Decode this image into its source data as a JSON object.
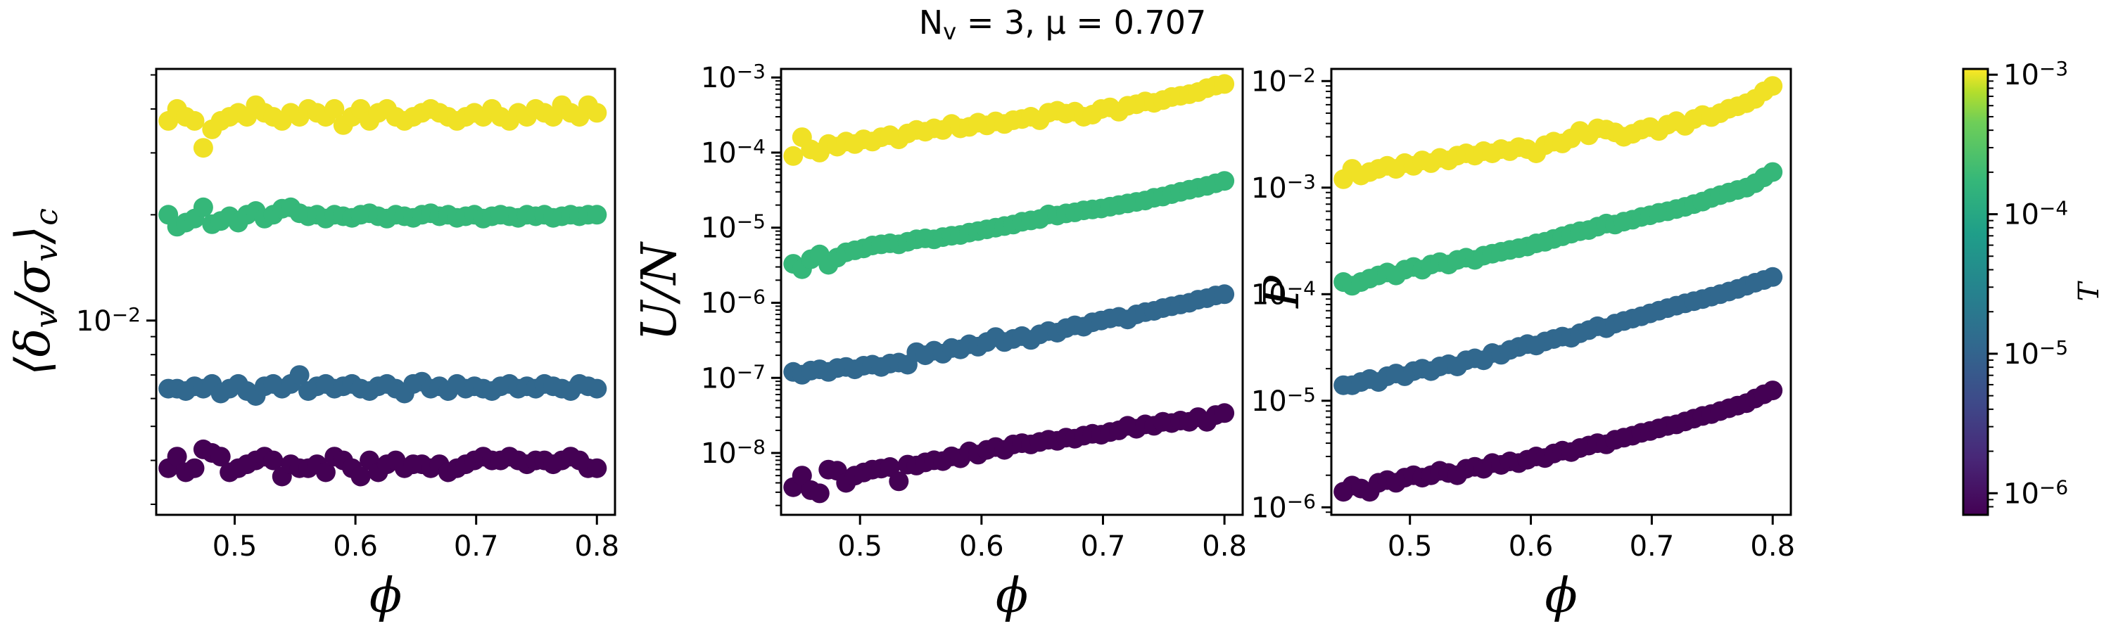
{
  "figure": {
    "suptitle": "N_v = 3, μ = 0.707"
  },
  "colors": {
    "T_1e-6": "#440154",
    "T_1e-5": "#31688e",
    "T_1e-4": "#35b779",
    "T_1e-3": "#f0e125"
  },
  "chart_data": [
    {
      "type": "scatter",
      "xlabel": "ϕ",
      "ylabel": "⟨δ_v/σ_v⟩_c",
      "yscale": "log",
      "xlim": [
        0.435,
        0.815
      ],
      "ylim": [
        0.0028,
        0.052
      ],
      "xticks": [
        0.5,
        0.6,
        0.7,
        0.8
      ],
      "xtick_labels": [
        "0.5",
        "0.6",
        "0.7",
        "0.8"
      ],
      "yticks": [
        0.01
      ],
      "ytick_labels": [
        "10^-2"
      ],
      "series": [
        {
          "T": 0.001,
          "y": [
            0.037,
            0.04,
            0.038,
            0.037,
            0.031,
            0.035,
            0.037,
            0.038,
            0.039,
            0.038,
            0.041,
            0.039,
            0.038,
            0.037,
            0.039,
            0.038,
            0.04,
            0.039,
            0.038,
            0.04,
            0.036,
            0.038,
            0.04,
            0.037,
            0.039,
            0.04,
            0.038,
            0.037,
            0.038,
            0.039,
            0.04,
            0.039,
            0.038,
            0.037,
            0.038,
            0.039,
            0.038,
            0.04,
            0.038,
            0.037,
            0.039,
            0.038,
            0.04,
            0.039,
            0.038,
            0.041,
            0.039,
            0.038,
            0.041,
            0.039
          ]
        },
        {
          "T": 0.0001,
          "y": [
            0.02,
            0.0185,
            0.019,
            0.0195,
            0.021,
            0.0188,
            0.0192,
            0.0198,
            0.019,
            0.02,
            0.0205,
            0.0195,
            0.02,
            0.0208,
            0.021,
            0.0202,
            0.0198,
            0.02,
            0.0195,
            0.02,
            0.0198,
            0.0196,
            0.02,
            0.0202,
            0.0198,
            0.0195,
            0.02,
            0.0198,
            0.0196,
            0.02,
            0.0202,
            0.0198,
            0.02,
            0.0196,
            0.0198,
            0.02,
            0.0195,
            0.0198,
            0.02,
            0.0198,
            0.0196,
            0.02,
            0.0198,
            0.02,
            0.0196,
            0.0198,
            0.02,
            0.0198,
            0.02,
            0.02
          ]
        },
        {
          "T": 1e-05,
          "y": [
            0.0064,
            0.0064,
            0.0063,
            0.0065,
            0.0064,
            0.0066,
            0.0062,
            0.0064,
            0.0066,
            0.0063,
            0.0061,
            0.0065,
            0.0066,
            0.0064,
            0.0066,
            0.007,
            0.0063,
            0.0065,
            0.0066,
            0.0064,
            0.0065,
            0.0066,
            0.0064,
            0.0063,
            0.0065,
            0.0066,
            0.0064,
            0.0062,
            0.0066,
            0.0067,
            0.0064,
            0.0065,
            0.0063,
            0.0066,
            0.0064,
            0.0065,
            0.0064,
            0.0063,
            0.0065,
            0.0066,
            0.0064,
            0.0065,
            0.0064,
            0.0066,
            0.0065,
            0.0064,
            0.0063,
            0.0066,
            0.0065,
            0.0064
          ]
        },
        {
          "T": 1e-06,
          "y": [
            0.0038,
            0.0041,
            0.0037,
            0.0038,
            0.0043,
            0.0042,
            0.0041,
            0.0037,
            0.0038,
            0.0039,
            0.004,
            0.0041,
            0.004,
            0.0036,
            0.0039,
            0.0038,
            0.0038,
            0.0039,
            0.0037,
            0.0041,
            0.004,
            0.0038,
            0.0036,
            0.004,
            0.0037,
            0.0039,
            0.004,
            0.0038,
            0.0039,
            0.0039,
            0.0038,
            0.0039,
            0.0037,
            0.0038,
            0.0039,
            0.004,
            0.0041,
            0.004,
            0.004,
            0.0041,
            0.004,
            0.0039,
            0.004,
            0.004,
            0.0039,
            0.004,
            0.0041,
            0.004,
            0.0038,
            0.0038
          ]
        }
      ]
    },
    {
      "type": "scatter",
      "xlabel": "ϕ",
      "ylabel": "U/N",
      "yscale": "log",
      "xlim": [
        0.435,
        0.815
      ],
      "ylim": [
        1.5e-09,
        0.0013
      ],
      "xticks": [
        0.5,
        0.6,
        0.7,
        0.8
      ],
      "xtick_labels": [
        "0.5",
        "0.6",
        "0.7",
        "0.8"
      ],
      "yticks": [
        1e-08,
        1e-07,
        1e-06,
        1e-05,
        0.0001,
        0.001
      ],
      "ytick_labels": [
        "10^-8",
        "10^-7",
        "10^-6",
        "10^-5",
        "10^-4",
        "10^-3"
      ],
      "series": [
        {
          "T": 0.001,
          "y": [
            9e-05,
            0.00016,
            0.00011,
            0.0001,
            0.00013,
            0.00012,
            0.00014,
            0.00013,
            0.00015,
            0.00014,
            0.00016,
            0.00017,
            0.00015,
            0.00018,
            0.0002,
            0.00019,
            0.00021,
            0.0002,
            0.00024,
            0.00021,
            0.00022,
            0.00025,
            0.00023,
            0.00026,
            0.00024,
            0.00027,
            0.00028,
            0.0003,
            0.00027,
            0.00034,
            0.00036,
            0.00033,
            0.00035,
            0.0003,
            0.00032,
            0.00038,
            0.0004,
            0.00035,
            0.00042,
            0.00044,
            0.00048,
            0.00046,
            0.0005,
            0.00055,
            0.00057,
            0.0006,
            0.00064,
            0.00072,
            0.00078,
            0.00082
          ]
        },
        {
          "T": 0.0001,
          "y": [
            3.3e-06,
            2.8e-06,
            3.8e-06,
            4.4e-06,
            3.2e-06,
            4e-06,
            4.7e-06,
            5e-06,
            5.3e-06,
            5.8e-06,
            6e-06,
            6.2e-06,
            6e-06,
            6.5e-06,
            7e-06,
            7.2e-06,
            7e-06,
            7.5e-06,
            7.8e-06,
            8e-06,
            8.6e-06,
            9e-06,
            9.5e-06,
            1e-05,
            1.05e-05,
            1.1e-05,
            1.2e-05,
            1.25e-05,
            1.3e-05,
            1.5e-05,
            1.45e-05,
            1.55e-05,
            1.6e-05,
            1.7e-05,
            1.75e-05,
            1.8e-05,
            1.9e-05,
            2e-05,
            2.1e-05,
            2.2e-05,
            2.3e-05,
            2.5e-05,
            2.6e-05,
            2.8e-05,
            3e-05,
            3.2e-05,
            3.4e-05,
            3.6e-05,
            3.9e-05,
            4.2e-05
          ]
        },
        {
          "T": 1e-05,
          "y": [
            1.2e-07,
            1.1e-07,
            1.25e-07,
            1.3e-07,
            1.2e-07,
            1.35e-07,
            1.4e-07,
            1.3e-07,
            1.45e-07,
            1.5e-07,
            1.4e-07,
            1.55e-07,
            1.6e-07,
            1.5e-07,
            2.2e-07,
            2e-07,
            2.3e-07,
            2.1e-07,
            2.5e-07,
            2.4e-07,
            2.8e-07,
            2.6e-07,
            3e-07,
            3.5e-07,
            3e-07,
            3.3e-07,
            3.6e-07,
            3.2e-07,
            3.8e-07,
            4.2e-07,
            4e-07,
            4.6e-07,
            5e-07,
            4.8e-07,
            5.5e-07,
            5.8e-07,
            6.2e-07,
            6.5e-07,
            6e-07,
            7e-07,
            7.5e-07,
            7.8e-07,
            8.5e-07,
            9e-07,
            9.5e-07,
            1e-06,
            1.1e-06,
            1.15e-06,
            1.25e-06,
            1.3e-06
          ]
        },
        {
          "T": 1e-06,
          "y": [
            3.5e-09,
            5e-09,
            3.2e-09,
            2.9e-09,
            6e-09,
            5.8e-09,
            4e-09,
            5e-09,
            5.5e-09,
            6e-09,
            6.2e-09,
            6.5e-09,
            4.2e-09,
            7e-09,
            6.8e-09,
            7.5e-09,
            8e-09,
            7.8e-09,
            9e-09,
            8.5e-09,
            1.05e-08,
            9.5e-09,
            1.1e-08,
            1.2e-08,
            1.1e-08,
            1.3e-08,
            1.35e-08,
            1.3e-08,
            1.4e-08,
            1.5e-08,
            1.45e-08,
            1.6e-08,
            1.55e-08,
            1.7e-08,
            1.8e-08,
            1.75e-08,
            1.9e-08,
            2e-08,
            2.3e-08,
            2.1e-08,
            2.4e-08,
            2.3e-08,
            2.6e-08,
            2.5e-08,
            2.7e-08,
            2.6e-08,
            3e-08,
            2.6e-08,
            3.2e-08,
            3.4e-08
          ]
        }
      ]
    },
    {
      "type": "scatter",
      "xlabel": "ϕ",
      "ylabel": "P",
      "yscale": "log",
      "xlim": [
        0.435,
        0.815
      ],
      "ylim": [
        8.5e-07,
        0.013
      ],
      "xticks": [
        0.5,
        0.6,
        0.7,
        0.8
      ],
      "xtick_labels": [
        "0.5",
        "0.6",
        "0.7",
        "0.8"
      ],
      "yticks": [
        1e-06,
        1e-05,
        0.0001,
        0.001,
        0.01
      ],
      "ytick_labels": [
        "10^-6",
        "10^-5",
        "10^-4",
        "10^-3",
        "10^-2"
      ],
      "series": [
        {
          "T": 0.001,
          "y": [
            0.0012,
            0.0015,
            0.0013,
            0.0014,
            0.0015,
            0.0016,
            0.0015,
            0.0017,
            0.0016,
            0.0018,
            0.0017,
            0.0019,
            0.0018,
            0.002,
            0.0021,
            0.002,
            0.0022,
            0.0021,
            0.0023,
            0.0022,
            0.0024,
            0.0023,
            0.0021,
            0.0025,
            0.0027,
            0.0026,
            0.0029,
            0.0034,
            0.0031,
            0.0036,
            0.0035,
            0.0033,
            0.003,
            0.0032,
            0.0035,
            0.0037,
            0.0034,
            0.0039,
            0.0042,
            0.0038,
            0.0044,
            0.0048,
            0.0046,
            0.005,
            0.0055,
            0.0058,
            0.0062,
            0.0068,
            0.008,
            0.009
          ]
        },
        {
          "T": 0.0001,
          "y": [
            0.00013,
            0.00012,
            0.00013,
            0.00014,
            0.00015,
            0.00016,
            0.00015,
            0.00017,
            0.00018,
            0.00017,
            0.00019,
            0.0002,
            0.00019,
            0.00021,
            0.00022,
            0.00021,
            0.00023,
            0.00024,
            0.00025,
            0.00026,
            0.00027,
            0.00028,
            0.0003,
            0.00031,
            0.00033,
            0.00035,
            0.00037,
            0.00039,
            0.0004,
            0.00043,
            0.00046,
            0.00045,
            0.00048,
            0.0005,
            0.00053,
            0.00055,
            0.00058,
            0.0006,
            0.00063,
            0.00066,
            0.0007,
            0.00074,
            0.0008,
            0.00085,
            0.0009,
            0.00095,
            0.001,
            0.0011,
            0.00125,
            0.0014
          ]
        },
        {
          "T": 1e-05,
          "y": [
            1.4e-05,
            1.4e-05,
            1.5e-05,
            1.6e-05,
            1.5e-05,
            1.7e-05,
            1.8e-05,
            1.7e-05,
            1.9e-05,
            2e-05,
            1.9e-05,
            2.1e-05,
            2.2e-05,
            2.1e-05,
            2.4e-05,
            2.5e-05,
            2.4e-05,
            2.8e-05,
            2.7e-05,
            3e-05,
            3.2e-05,
            3.4e-05,
            3.3e-05,
            3.6e-05,
            3.8e-05,
            4e-05,
            3.9e-05,
            4.3e-05,
            4.6e-05,
            5e-05,
            4.8e-05,
            5.3e-05,
            5.6e-05,
            5.9e-05,
            6.2e-05,
            6.6e-05,
            7e-05,
            7.4e-05,
            7.8e-05,
            8.2e-05,
            8.6e-05,
            9e-05,
            9.5e-05,
            0.0001,
            0.000106,
            0.000112,
            0.00012,
            0.000128,
            0.000136,
            0.000145
          ]
        },
        {
          "T": 1e-06,
          "y": [
            1.4e-06,
            1.6e-06,
            1.5e-06,
            1.4e-06,
            1.7e-06,
            1.8e-06,
            1.7e-06,
            1.9e-06,
            2e-06,
            1.9e-06,
            2e-06,
            2.2e-06,
            2.1e-06,
            2e-06,
            2.3e-06,
            2.4e-06,
            2.3e-06,
            2.6e-06,
            2.5e-06,
            2.7e-06,
            2.6e-06,
            2.8e-06,
            3e-06,
            2.9e-06,
            3.2e-06,
            3.4e-06,
            3.3e-06,
            3.6e-06,
            3.8e-06,
            4e-06,
            3.9e-06,
            4.3e-06,
            4.5e-06,
            4.7e-06,
            5e-06,
            5.2e-06,
            5.5e-06,
            5.8e-06,
            6e-06,
            6.4e-06,
            6.8e-06,
            7.2e-06,
            7.5e-06,
            8e-06,
            8.5e-06,
            9e-06,
            9.5e-06,
            1.05e-05,
            1.15e-05,
            1.25e-05
          ]
        }
      ]
    }
  ],
  "colorbar": {
    "label": "T",
    "scale": "log",
    "range": [
      7e-07,
      0.0011
    ],
    "colormap": "viridis",
    "ticks": [
      1e-06,
      1e-05,
      0.0001,
      0.001
    ],
    "tick_labels": [
      "10^-6",
      "10^-5",
      "10^-4",
      "10^-3"
    ]
  }
}
